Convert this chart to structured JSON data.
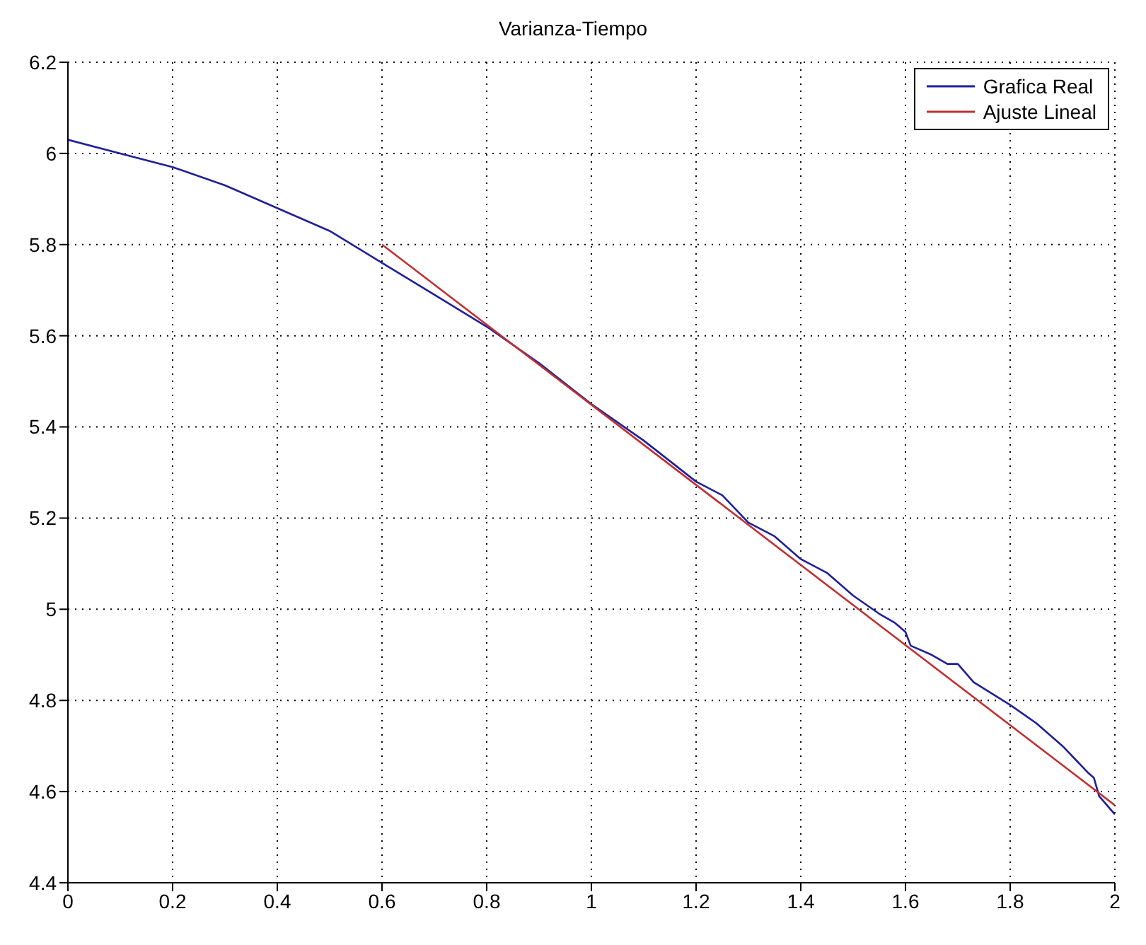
{
  "chart_data": {
    "type": "line",
    "title": "Varianza-Tiempo",
    "xlim": [
      0,
      2
    ],
    "xticks": [
      0,
      0.2,
      0.4,
      0.6,
      0.8,
      1,
      1.2,
      1.4,
      1.6,
      1.8,
      2
    ],
    "ylim": [
      4.4,
      6.2
    ],
    "yticks": [
      4.4,
      4.6,
      4.8,
      5,
      5.2,
      5.4,
      5.6,
      5.8,
      6,
      6.2
    ],
    "grid": true,
    "legend": "top right",
    "line_style": "solid",
    "marker": "none",
    "series": [
      {
        "name": "Grafica Real",
        "color": "#1f1f9a",
        "x": [
          0,
          0.1,
          0.2,
          0.3,
          0.4,
          0.5,
          0.6,
          0.7,
          0.8,
          0.9,
          1.0,
          1.1,
          1.2,
          1.25,
          1.3,
          1.35,
          1.4,
          1.45,
          1.5,
          1.55,
          1.58,
          1.6,
          1.61,
          1.65,
          1.68,
          1.7,
          1.73,
          1.8,
          1.85,
          1.9,
          1.95,
          1.96,
          1.97,
          2.0
        ],
        "values": [
          6.03,
          6.0,
          5.97,
          5.93,
          5.88,
          5.83,
          5.76,
          5.69,
          5.62,
          5.54,
          5.45,
          5.37,
          5.28,
          5.25,
          5.19,
          5.16,
          5.11,
          5.08,
          5.03,
          4.99,
          4.97,
          4.95,
          4.92,
          4.9,
          4.88,
          4.88,
          4.84,
          4.79,
          4.75,
          4.7,
          4.64,
          4.63,
          4.59,
          4.55
        ]
      },
      {
        "name": "Ajuste Lineal",
        "color": "#c03030",
        "x": [
          0.6,
          2.0
        ],
        "values": [
          5.8,
          4.57
        ]
      }
    ]
  }
}
